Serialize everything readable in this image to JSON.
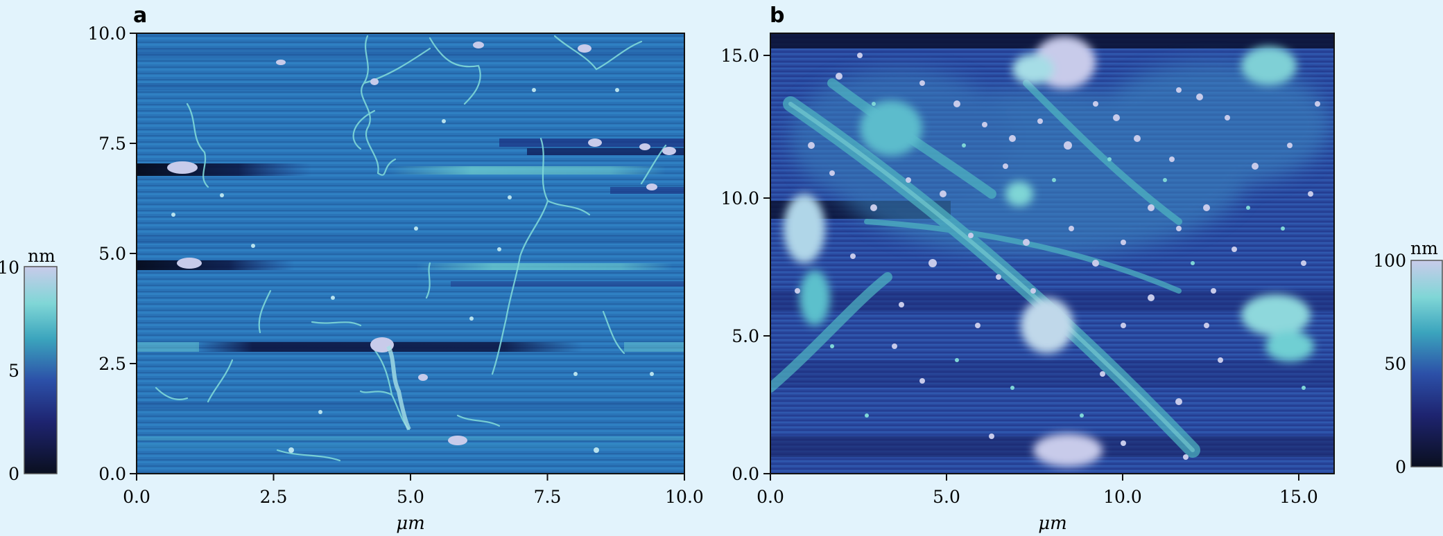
{
  "panels": [
    {
      "id": "a",
      "label": "a",
      "x_ticks": [
        "0.0",
        "2.5",
        "5.0",
        "7.5",
        "10.0"
      ],
      "y_ticks": [
        "0.0",
        "2.5",
        "5.0",
        "7.5",
        "10.0"
      ],
      "x_range": [
        0,
        10
      ],
      "y_range": [
        0,
        10
      ],
      "xlabel": "μm",
      "colorbar": {
        "unit": "nm",
        "ticks": [
          "0",
          "5",
          "10"
        ],
        "range": [
          0,
          10
        ]
      }
    },
    {
      "id": "b",
      "label": "b",
      "x_ticks": [
        "0.0",
        "5.0",
        "10.0",
        "15.0"
      ],
      "y_ticks": [
        "0.0",
        "5.0",
        "10.0",
        "15.0"
      ],
      "x_range": [
        0,
        16
      ],
      "y_range": [
        0,
        16
      ],
      "xlabel": "μm",
      "colorbar": {
        "unit": "nm",
        "ticks": [
          "0",
          "50",
          "100"
        ],
        "range": [
          0,
          100
        ]
      }
    }
  ],
  "colormap": [
    "#0a0f1f",
    "#1e2470",
    "#2c50a8",
    "#3ba4bd",
    "#7fd6d6",
    "#c8cbea"
  ]
}
